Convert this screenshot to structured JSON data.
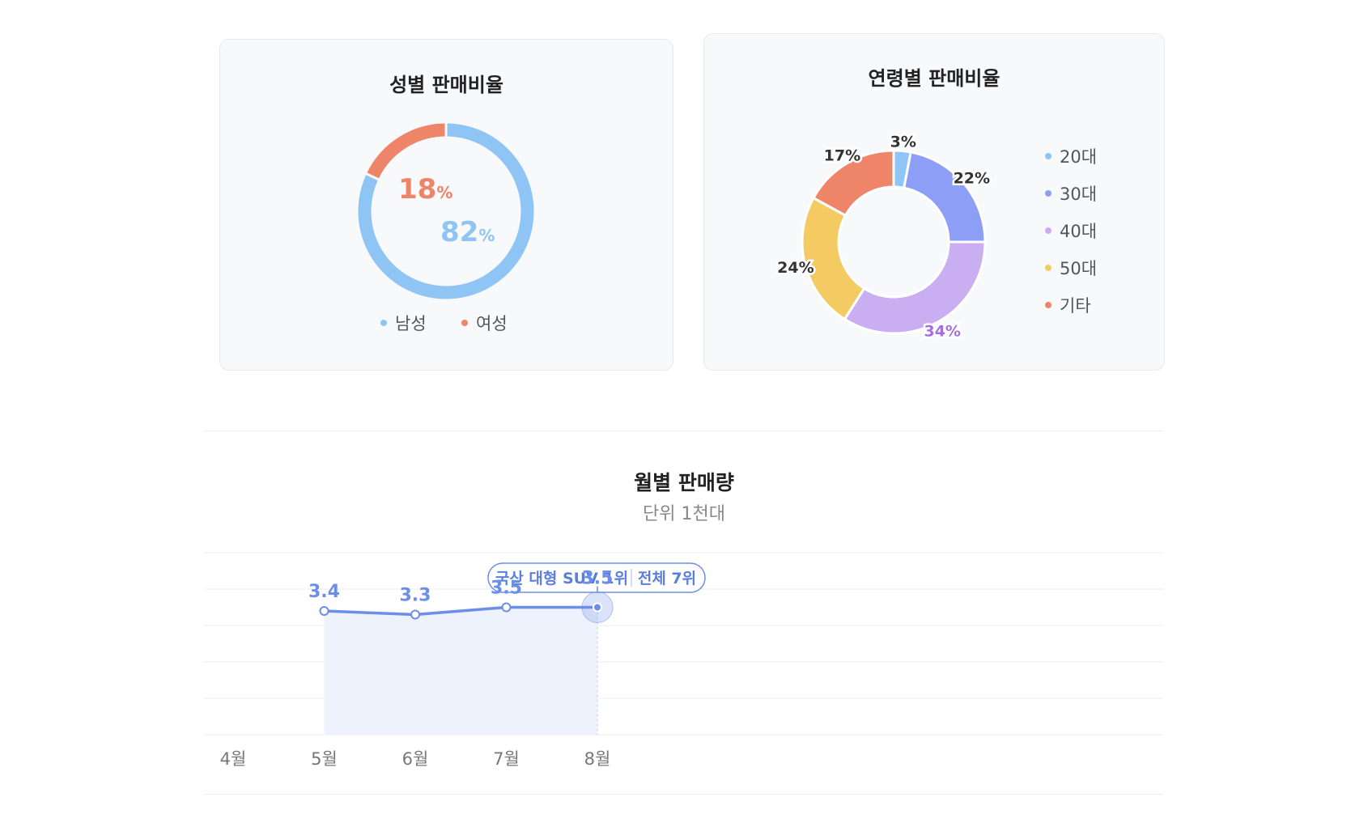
{
  "gender_chart": {
    "title": "성별 판매비율",
    "legend": [
      {
        "label": "남성",
        "color": "#8fc5f5"
      },
      {
        "label": "여성",
        "color": "#ee8468"
      }
    ],
    "labels": {
      "male_value": "82",
      "male_unit": "%",
      "female_value": "18",
      "female_unit": "%"
    }
  },
  "age_chart": {
    "title": "연령별 판매비율",
    "legend": [
      {
        "label": "20대",
        "color": "#8fc5f5"
      },
      {
        "label": "30대",
        "color": "#8c9ef5"
      },
      {
        "label": "40대",
        "color": "#c9aef2"
      },
      {
        "label": "50대",
        "color": "#f4ca62"
      },
      {
        "label": "기타",
        "color": "#ee8468"
      }
    ],
    "slice_labels": [
      "3%",
      "22%",
      "34%",
      "24%",
      "17%"
    ]
  },
  "monthly_chart": {
    "title": "월별 판매량",
    "subtitle": "단위 1천대",
    "annotation": {
      "left": "국산 대형 SUV 1위",
      "right": "전체 7위"
    }
  },
  "chart_data": [
    {
      "type": "pie",
      "title": "성별 판매비율",
      "categories": [
        "남성",
        "여성"
      ],
      "values": [
        82,
        18
      ],
      "colors": [
        "#8fc5f5",
        "#ee8468"
      ],
      "donut": true,
      "legend": "bottom"
    },
    {
      "type": "pie",
      "title": "연령별 판매비율",
      "categories": [
        "20대",
        "30대",
        "40대",
        "50대",
        "기타"
      ],
      "values": [
        3,
        22,
        34,
        24,
        17
      ],
      "colors": [
        "#8fc5f5",
        "#8c9ef5",
        "#c9aef2",
        "#f4ca62",
        "#ee8468"
      ],
      "donut": true,
      "legend": "right"
    },
    {
      "type": "line",
      "title": "월별 판매량",
      "subtitle": "단위 1천대",
      "categories": [
        "4월",
        "5월",
        "6월",
        "7월",
        "8월"
      ],
      "series": [
        {
          "values": [
            null,
            3.4,
            3.3,
            3.5,
            3.5
          ],
          "color": "#6b8ee8"
        }
      ],
      "ylim": [
        0,
        5
      ],
      "grid": true,
      "highlight_index": 4
    }
  ]
}
